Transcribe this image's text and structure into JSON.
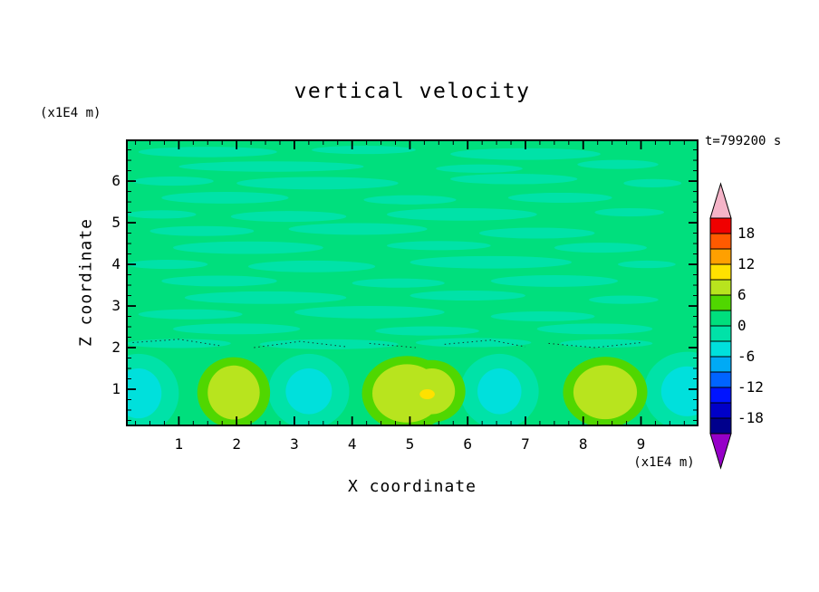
{
  "chart_data": {
    "type": "contour",
    "title": "vertical velocity",
    "xlabel": "X coordinate",
    "ylabel": "Z coordinate",
    "x_units": "(x1E4 m)",
    "y_units": "(x1E4 m)",
    "timestamp": "t=799200 s",
    "x_range": [
      0.1,
      9.98
    ],
    "z_range": [
      0.13,
      6.98
    ],
    "x_ticks": [
      1,
      2,
      3,
      4,
      5,
      6,
      7,
      8,
      9
    ],
    "z_ticks": [
      1,
      2,
      3,
      4,
      5,
      6
    ],
    "minor_tick_step": 0.25,
    "contour_interval": 3,
    "grid": false,
    "colorbar": {
      "position": "right",
      "tick_labels": [
        18,
        12,
        6,
        0,
        -6,
        -12,
        -18
      ],
      "top_arrow_color": "#F5B4C8",
      "bottom_arrow_color": "#9600C8",
      "bands_top_to_bottom": [
        {
          "range": "18..21",
          "color": "#F00000"
        },
        {
          "range": "15..18",
          "color": "#FF5A00"
        },
        {
          "range": "12..15",
          "color": "#FFA000"
        },
        {
          "range": "9..12",
          "color": "#FFE100"
        },
        {
          "range": "6..9",
          "color": "#B8E41E"
        },
        {
          "range": "3..6",
          "color": "#50D700"
        },
        {
          "range": "0..3",
          "color": "#00DF7D"
        },
        {
          "range": "-3..0",
          "color": "#00E2A8"
        },
        {
          "range": "-6..-3",
          "color": "#00E0DC"
        },
        {
          "range": "-9..-6",
          "color": "#00AAF5"
        },
        {
          "range": "-12..-9",
          "color": "#0064FF"
        },
        {
          "range": "-15..-12",
          "color": "#0014FF"
        },
        {
          "range": "-18..-15",
          "color": "#0000C8"
        },
        {
          "range": "-21..-18",
          "color": "#00008C"
        }
      ]
    },
    "field": {
      "base_band": "0..3",
      "base_color": "#00DF7D",
      "streak_band": "-3..0",
      "streak_color": "#00E2A8",
      "streaks": [
        [
          1.5,
          6.7,
          2.4,
          0.25
        ],
        [
          4.2,
          6.75,
          1.8,
          0.2
        ],
        [
          7.0,
          6.65,
          2.6,
          0.28
        ],
        [
          2.6,
          6.35,
          3.2,
          0.25
        ],
        [
          6.2,
          6.3,
          1.5,
          0.2
        ],
        [
          8.6,
          6.4,
          1.4,
          0.22
        ],
        [
          0.9,
          6.0,
          1.4,
          0.22
        ],
        [
          3.4,
          5.95,
          2.8,
          0.3
        ],
        [
          6.8,
          6.05,
          2.2,
          0.25
        ],
        [
          9.2,
          5.95,
          1.0,
          0.2
        ],
        [
          1.8,
          5.6,
          2.2,
          0.28
        ],
        [
          5.0,
          5.55,
          1.6,
          0.22
        ],
        [
          7.6,
          5.6,
          1.8,
          0.24
        ],
        [
          0.7,
          5.2,
          1.2,
          0.2
        ],
        [
          2.9,
          5.15,
          2.0,
          0.26
        ],
        [
          5.9,
          5.2,
          2.6,
          0.3
        ],
        [
          8.8,
          5.25,
          1.2,
          0.2
        ],
        [
          1.4,
          4.8,
          1.8,
          0.24
        ],
        [
          4.1,
          4.85,
          2.4,
          0.28
        ],
        [
          7.2,
          4.75,
          2.0,
          0.26
        ],
        [
          2.2,
          4.4,
          2.6,
          0.3
        ],
        [
          5.5,
          4.45,
          1.8,
          0.22
        ],
        [
          8.3,
          4.4,
          1.6,
          0.24
        ],
        [
          0.8,
          4.0,
          1.4,
          0.22
        ],
        [
          3.3,
          3.95,
          2.2,
          0.28
        ],
        [
          6.4,
          4.05,
          2.8,
          0.3
        ],
        [
          9.1,
          4.0,
          1.0,
          0.18
        ],
        [
          1.7,
          3.6,
          2.0,
          0.26
        ],
        [
          4.8,
          3.55,
          1.6,
          0.22
        ],
        [
          7.5,
          3.6,
          2.2,
          0.28
        ],
        [
          2.5,
          3.2,
          2.8,
          0.3
        ],
        [
          6.0,
          3.25,
          2.0,
          0.24
        ],
        [
          8.7,
          3.15,
          1.2,
          0.2
        ],
        [
          1.2,
          2.8,
          1.8,
          0.24
        ],
        [
          4.3,
          2.85,
          2.6,
          0.3
        ],
        [
          7.3,
          2.75,
          1.8,
          0.24
        ],
        [
          2.0,
          2.45,
          2.2,
          0.26
        ],
        [
          5.3,
          2.4,
          1.8,
          0.22
        ],
        [
          8.2,
          2.45,
          2.0,
          0.26
        ],
        [
          1.0,
          2.1,
          1.8,
          0.22
        ],
        [
          3.6,
          2.08,
          2.4,
          0.24
        ],
        [
          6.1,
          2.12,
          2.0,
          0.22
        ],
        [
          8.4,
          2.1,
          1.6,
          0.2
        ]
      ],
      "negative_cell_band": "-6..-3",
      "negative_cell_color": "#00E0DC",
      "negative_halo_color": "#00E2A8",
      "negative_cells": [
        [
          0.3,
          0.9,
          0.4,
          0.6
        ],
        [
          3.25,
          0.95,
          0.4,
          0.55
        ],
        [
          6.55,
          0.95,
          0.38,
          0.55
        ],
        [
          9.8,
          0.95,
          0.45,
          0.6
        ]
      ],
      "positive_core_band": "6..9",
      "positive_core_color": "#B8E41E",
      "positive_halo_band": "3..6",
      "positive_halo_color": "#50D700",
      "positive_cells": [
        [
          1.95,
          0.92,
          0.45,
          0.65
        ],
        [
          4.95,
          0.9,
          0.6,
          0.7
        ],
        [
          5.38,
          0.95,
          0.4,
          0.55
        ],
        [
          8.38,
          0.93,
          0.55,
          0.65
        ]
      ],
      "hot_spot": {
        "x": 5.3,
        "z": 0.88,
        "rx": 0.13,
        "rz": 0.12,
        "band": "9..12",
        "color": "#FFE100"
      },
      "zero_contour_dotted_segments": [
        [
          [
            0.2,
            2.12
          ],
          [
            1.0,
            2.2
          ],
          [
            1.7,
            2.05
          ]
        ],
        [
          [
            2.3,
            2.0
          ],
          [
            3.1,
            2.15
          ],
          [
            3.9,
            2.02
          ]
        ],
        [
          [
            4.3,
            2.1
          ],
          [
            5.1,
            2.0
          ]
        ],
        [
          [
            5.6,
            2.08
          ],
          [
            6.4,
            2.18
          ],
          [
            7.0,
            2.02
          ]
        ],
        [
          [
            7.4,
            2.1
          ],
          [
            8.2,
            2.0
          ],
          [
            9.0,
            2.12
          ]
        ]
      ]
    }
  }
}
